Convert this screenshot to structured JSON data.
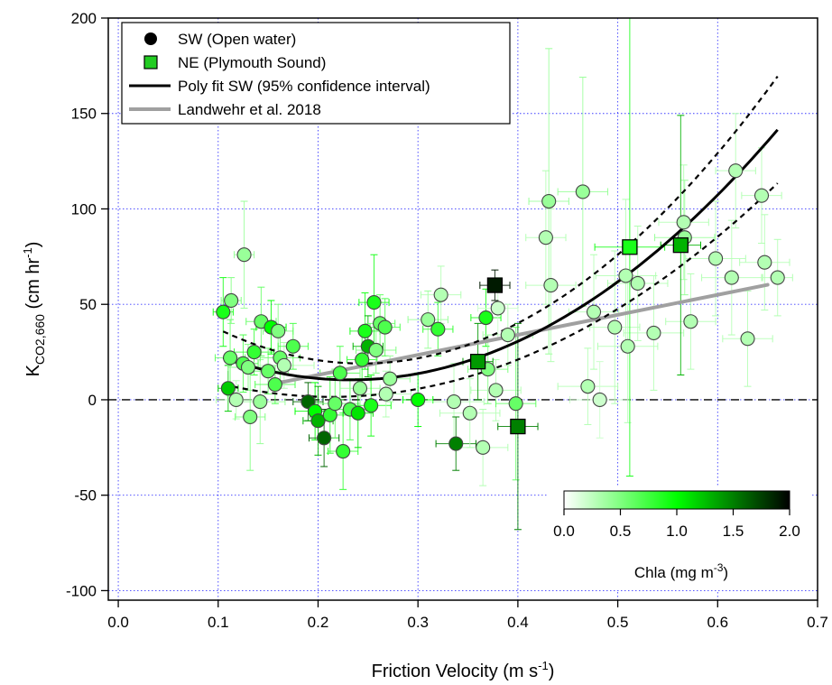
{
  "chart_data": {
    "type": "scatter",
    "xlabel": "Friction Velocity (m s",
    "xlabel_sup": "-1",
    "xlabel_end": ")",
    "ylabel": "K",
    "ylabel_sub": "CO2,660",
    "ylabel_mid": " (cm hr",
    "ylabel_sup": "-1",
    "ylabel_end": ")",
    "xlim": [
      -0.01,
      0.7
    ],
    "ylim": [
      -105,
      200
    ],
    "xticks": [
      "0.0",
      "0.1",
      "0.2",
      "0.3",
      "0.4",
      "0.5",
      "0.6",
      "0.7"
    ],
    "yticks": [
      "200",
      "150",
      "100",
      "50",
      "0",
      "-50",
      "-100"
    ],
    "grid": true,
    "zero_line": "dashed",
    "legend": {
      "placement": "top-left",
      "entries": [
        {
          "label": "SW (Open water)",
          "marker": "circle",
          "color": "#000000"
        },
        {
          "label": "NE (Plymouth Sound)",
          "marker": "square",
          "color": "#22cc22"
        },
        {
          "label": "Poly fit SW (95% confidence interval)",
          "marker": "line",
          "color": "#000000"
        },
        {
          "label": "Landwehr et al. 2018",
          "marker": "line",
          "color": "#a0a0a0"
        }
      ]
    },
    "colorbar": {
      "label": "Chla (mg m",
      "label_sup": "-3",
      "label_end": ")",
      "ticks": [
        "0.0",
        "0.5",
        "1.0",
        "1.5",
        "2.0"
      ],
      "range": [
        0,
        2
      ],
      "colors": [
        "#ffffff",
        "#00ff00",
        "#000000"
      ]
    },
    "sw_points": [
      {
        "x": 0.105,
        "y": 46,
        "c": 0.9,
        "ex": 0.01,
        "ey": 18
      },
      {
        "x": 0.11,
        "y": 6,
        "c": 1.2,
        "ex": 0.01,
        "ey": 12
      },
      {
        "x": 0.112,
        "y": 22,
        "c": 0.6,
        "ex": 0.015,
        "ey": 20
      },
      {
        "x": 0.113,
        "y": 52,
        "c": 0.5,
        "ex": 0.01,
        "ey": 12
      },
      {
        "x": 0.118,
        "y": 0,
        "c": 0.3,
        "ex": 0.02,
        "ey": 10
      },
      {
        "x": 0.125,
        "y": 19,
        "c": 0.7,
        "ex": 0.015,
        "ey": 15
      },
      {
        "x": 0.126,
        "y": 76,
        "c": 0.4,
        "ex": 0.01,
        "ey": 28
      },
      {
        "x": 0.13,
        "y": 17,
        "c": 0.5,
        "ex": 0.02,
        "ey": 12
      },
      {
        "x": 0.132,
        "y": -9,
        "c": 0.5,
        "ex": 0.015,
        "ey": 28
      },
      {
        "x": 0.136,
        "y": 25,
        "c": 0.8,
        "ex": 0.02,
        "ey": 12
      },
      {
        "x": 0.142,
        "y": -1,
        "c": 0.4,
        "ex": 0.025,
        "ey": 22
      },
      {
        "x": 0.143,
        "y": 41,
        "c": 0.6,
        "ex": 0.015,
        "ey": 18
      },
      {
        "x": 0.15,
        "y": 15,
        "c": 0.6,
        "ex": 0.02,
        "ey": 12
      },
      {
        "x": 0.153,
        "y": 38,
        "c": 1.0,
        "ex": 0.015,
        "ey": 14
      },
      {
        "x": 0.157,
        "y": 8,
        "c": 0.7,
        "ex": 0.02,
        "ey": 10
      },
      {
        "x": 0.16,
        "y": 36,
        "c": 0.5,
        "ex": 0.015,
        "ey": 14
      },
      {
        "x": 0.162,
        "y": 22,
        "c": 0.6,
        "ex": 0.02,
        "ey": 12
      },
      {
        "x": 0.166,
        "y": 18,
        "c": 0.3,
        "ex": 0.03,
        "ey": 12
      },
      {
        "x": 0.175,
        "y": 28,
        "c": 0.7,
        "ex": 0.015,
        "ey": 12
      },
      {
        "x": 0.19,
        "y": -1,
        "c": 1.6,
        "ex": 0.015,
        "ey": 10
      },
      {
        "x": 0.197,
        "y": -6,
        "c": 1.0,
        "ex": 0.02,
        "ey": 15
      },
      {
        "x": 0.2,
        "y": -11,
        "c": 1.3,
        "ex": 0.015,
        "ey": 18
      },
      {
        "x": 0.206,
        "y": -20,
        "c": 1.6,
        "ex": 0.015,
        "ey": 15
      },
      {
        "x": 0.212,
        "y": -8,
        "c": 0.8,
        "ex": 0.02,
        "ey": 20
      },
      {
        "x": 0.217,
        "y": -2,
        "c": 0.6,
        "ex": 0.025,
        "ey": 18
      },
      {
        "x": 0.222,
        "y": 14,
        "c": 0.7,
        "ex": 0.02,
        "ey": 14
      },
      {
        "x": 0.225,
        "y": -27,
        "c": 0.8,
        "ex": 0.015,
        "ey": 20
      },
      {
        "x": 0.232,
        "y": -5,
        "c": 0.7,
        "ex": 0.02,
        "ey": 16
      },
      {
        "x": 0.24,
        "y": -7,
        "c": 1.1,
        "ex": 0.015,
        "ey": 18
      },
      {
        "x": 0.242,
        "y": 6,
        "c": 0.4,
        "ex": 0.02,
        "ey": 12
      },
      {
        "x": 0.244,
        "y": 21,
        "c": 0.8,
        "ex": 0.015,
        "ey": 16
      },
      {
        "x": 0.247,
        "y": 36,
        "c": 0.9,
        "ex": 0.015,
        "ey": 20
      },
      {
        "x": 0.25,
        "y": 28,
        "c": 1.3,
        "ex": 0.015,
        "ey": 16
      },
      {
        "x": 0.253,
        "y": -3,
        "c": 0.9,
        "ex": 0.02,
        "ey": 16
      },
      {
        "x": 0.256,
        "y": 51,
        "c": 0.9,
        "ex": 0.015,
        "ey": 25
      },
      {
        "x": 0.258,
        "y": 26,
        "c": 0.5,
        "ex": 0.02,
        "ey": 12
      },
      {
        "x": 0.262,
        "y": 40,
        "c": 0.6,
        "ex": 0.015,
        "ey": 15
      },
      {
        "x": 0.267,
        "y": 38,
        "c": 0.7,
        "ex": 0.015,
        "ey": 15
      },
      {
        "x": 0.268,
        "y": 3,
        "c": 0.3,
        "ex": 0.025,
        "ey": 12
      },
      {
        "x": 0.272,
        "y": 11,
        "c": 0.4,
        "ex": 0.02,
        "ey": 12
      },
      {
        "x": 0.3,
        "y": 0,
        "c": 1.0,
        "ex": 0.015,
        "ey": 14
      },
      {
        "x": 0.31,
        "y": 42,
        "c": 0.4,
        "ex": 0.02,
        "ey": 15
      },
      {
        "x": 0.32,
        "y": 37,
        "c": 0.8,
        "ex": 0.015,
        "ey": 14
      },
      {
        "x": 0.323,
        "y": 55,
        "c": 0.3,
        "ex": 0.02,
        "ey": 15
      },
      {
        "x": 0.336,
        "y": -1,
        "c": 0.3,
        "ex": 0.03,
        "ey": 20
      },
      {
        "x": 0.338,
        "y": -23,
        "c": 1.5,
        "ex": 0.02,
        "ey": 14
      },
      {
        "x": 0.352,
        "y": -7,
        "c": 0.3,
        "ex": 0.03,
        "ey": 18
      },
      {
        "x": 0.365,
        "y": -25,
        "c": 0.3,
        "ex": 0.025,
        "ey": 20
      },
      {
        "x": 0.368,
        "y": 43,
        "c": 0.9,
        "ex": 0.015,
        "ey": 15
      },
      {
        "x": 0.37,
        "y": 16,
        "c": 0.5,
        "ex": 0.02,
        "ey": 18
      },
      {
        "x": 0.378,
        "y": 5,
        "c": 0.3,
        "ex": 0.025,
        "ey": 16
      },
      {
        "x": 0.38,
        "y": 48,
        "c": 0.2,
        "ex": 0.02,
        "ey": 16
      },
      {
        "x": 0.39,
        "y": 34,
        "c": 0.3,
        "ex": 0.025,
        "ey": 16
      },
      {
        "x": 0.398,
        "y": -2,
        "c": 0.6,
        "ex": 0.02,
        "ey": 40
      },
      {
        "x": 0.428,
        "y": 85,
        "c": 0.3,
        "ex": 0.02,
        "ey": 35
      },
      {
        "x": 0.431,
        "y": 104,
        "c": 0.4,
        "ex": 0.02,
        "ey": 80
      },
      {
        "x": 0.433,
        "y": 60,
        "c": 0.3,
        "ex": 0.025,
        "ey": 40
      },
      {
        "x": 0.465,
        "y": 109,
        "c": 0.4,
        "ex": 0.025,
        "ey": 60
      },
      {
        "x": 0.47,
        "y": 7,
        "c": 0.3,
        "ex": 0.03,
        "ey": 20
      },
      {
        "x": 0.476,
        "y": 46,
        "c": 0.3,
        "ex": 0.025,
        "ey": 30
      },
      {
        "x": 0.482,
        "y": 0,
        "c": 0.2,
        "ex": 0.03,
        "ey": 20
      },
      {
        "x": 0.497,
        "y": 38,
        "c": 0.3,
        "ex": 0.025,
        "ey": 40
      },
      {
        "x": 0.508,
        "y": 65,
        "c": 0.3,
        "ex": 0.03,
        "ey": 40
      },
      {
        "x": 0.51,
        "y": 28,
        "c": 0.3,
        "ex": 0.03,
        "ey": 40
      },
      {
        "x": 0.52,
        "y": 61,
        "c": 0.3,
        "ex": 0.03,
        "ey": 30
      },
      {
        "x": 0.536,
        "y": 35,
        "c": 0.3,
        "ex": 0.03,
        "ey": 30
      },
      {
        "x": 0.566,
        "y": 93,
        "c": 0.3,
        "ex": 0.025,
        "ey": 30
      },
      {
        "x": 0.567,
        "y": 85,
        "c": 0.4,
        "ex": 0.03,
        "ey": 30
      },
      {
        "x": 0.573,
        "y": 41,
        "c": 0.3,
        "ex": 0.025,
        "ey": 25
      },
      {
        "x": 0.598,
        "y": 74,
        "c": 0.3,
        "ex": 0.03,
        "ey": 30
      },
      {
        "x": 0.614,
        "y": 64,
        "c": 0.3,
        "ex": 0.03,
        "ey": 30
      },
      {
        "x": 0.618,
        "y": 120,
        "c": 0.3,
        "ex": 0.02,
        "ey": 30
      },
      {
        "x": 0.63,
        "y": 32,
        "c": 0.3,
        "ex": 0.025,
        "ey": 25
      },
      {
        "x": 0.644,
        "y": 107,
        "c": 0.3,
        "ex": 0.02,
        "ey": 25
      },
      {
        "x": 0.647,
        "y": 72,
        "c": 0.3,
        "ex": 0.025,
        "ey": 25
      },
      {
        "x": 0.66,
        "y": 64,
        "c": 0.3,
        "ex": 0.015,
        "ey": 20
      }
    ],
    "ne_points": [
      {
        "x": 0.36,
        "y": 20,
        "c": 1.4,
        "ex": 0.015,
        "ey": 20
      },
      {
        "x": 0.377,
        "y": 60,
        "c": 1.9,
        "ex": 0.015,
        "ey": 8
      },
      {
        "x": 0.4,
        "y": -14,
        "c": 1.5,
        "ex": 0.02,
        "ey": 54
      },
      {
        "x": 0.512,
        "y": 80,
        "c": 0.9,
        "ex": 0.035,
        "ey": 120
      },
      {
        "x": 0.563,
        "y": 81,
        "c": 1.3,
        "ex": 0.02,
        "ey": 68
      }
    ],
    "poly_fit": {
      "x_range": [
        0.105,
        0.66
      ],
      "fit": [
        48.94,
        -332.1,
        715.6
      ],
      "ci_offset": [
        0.0045,
        0.42,
        34.6
      ]
    },
    "landwehr": {
      "x_range": [
        0.16,
        0.65
      ],
      "slope": 105,
      "intercept": -8
    }
  }
}
